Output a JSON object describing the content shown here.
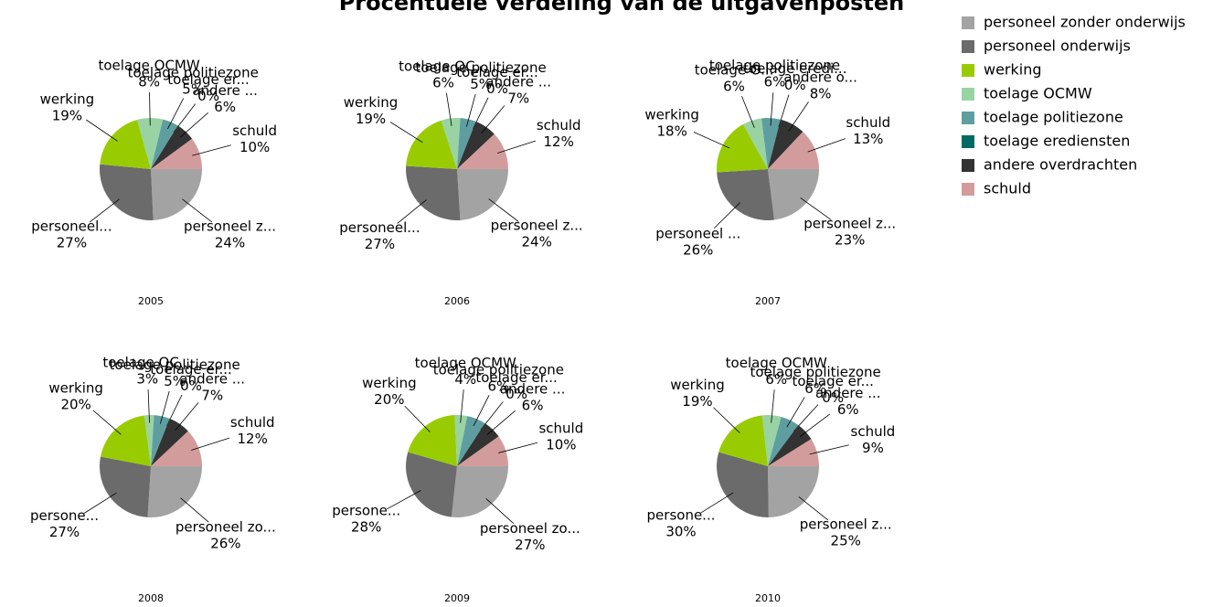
{
  "title": "Procentuele verdeling  van de uitgavenposten",
  "legend": {
    "names": [
      "personeel zonder onderwijs",
      "personeel onderwijs",
      "werking",
      "toelage OCMW",
      "toelage politiezone",
      "toelage erediensten",
      "andere overdrachten",
      "schuld"
    ],
    "colors": [
      "#a3a3a3",
      "#6b6b6b",
      "#99cc00",
      "#99d3a3",
      "#5f9ea0",
      "#006b63",
      "#333333",
      "#d39c9c"
    ]
  },
  "chart_data": [
    {
      "type": "pie",
      "title": "2005",
      "labels": [
        "personeel z...",
        "personeel...",
        "werking",
        "toelage OCMW",
        "toelage politiezone",
        "toelage er...",
        "andere ...",
        "schuld"
      ],
      "values": [
        24,
        27,
        19,
        8,
        5,
        0,
        6,
        10
      ],
      "value_labels": [
        "24%",
        "27%",
        "19%",
        "8%",
        "5%",
        "0%",
        "6%",
        "10%"
      ]
    },
    {
      "type": "pie",
      "title": "2006",
      "labels": [
        "personeel z...",
        "personeel...",
        "werking",
        "toelage OC...",
        "toelage politiezone",
        "toelage er...",
        "andere ...",
        "schuld"
      ],
      "values": [
        24,
        27,
        19,
        6,
        5,
        0,
        7,
        12
      ],
      "value_labels": [
        "24%",
        "27%",
        "19%",
        "6%",
        "5%",
        "0%",
        "7%",
        "12%"
      ]
    },
    {
      "type": "pie",
      "title": "2007",
      "labels": [
        "personeel z...",
        "personeel ...",
        "werking",
        "toelage O...",
        "toelage politiezone",
        "toelage eredi...",
        "andere o...",
        "schuld"
      ],
      "values": [
        23,
        26,
        18,
        6,
        6,
        0,
        8,
        13
      ],
      "value_labels": [
        "23%",
        "26%",
        "18%",
        "6%",
        "6%",
        "0%",
        "8%",
        "13%"
      ]
    },
    {
      "type": "pie",
      "title": "2008",
      "labels": [
        "personeel zo...",
        "persone...",
        "werking",
        "toelage OC...",
        "toelage politiezone",
        "toelage er...",
        "andere ...",
        "schuld"
      ],
      "values": [
        26,
        27,
        20,
        3,
        5,
        0,
        7,
        12
      ],
      "value_labels": [
        "26%",
        "27%",
        "20%",
        "3%",
        "5%",
        "0%",
        "7%",
        "12%"
      ]
    },
    {
      "type": "pie",
      "title": "2009",
      "labels": [
        "personeel zo...",
        "persone...",
        "werking",
        "toelage OCMW",
        "toelage politiezone",
        "toelage er...",
        "andere ...",
        "schuld"
      ],
      "values": [
        27,
        28,
        20,
        4,
        6,
        0,
        6,
        10
      ],
      "value_labels": [
        "27%",
        "28%",
        "20%",
        "4%",
        "6%",
        "0%",
        "6%",
        "10%"
      ]
    },
    {
      "type": "pie",
      "title": "2010",
      "labels": [
        "personeel z...",
        "persone...",
        "werking",
        "toelage OCMW",
        "toelage politiezone",
        "toelage er...",
        "andere ...",
        "schuld"
      ],
      "values": [
        25,
        30,
        19,
        6,
        6,
        0,
        6,
        9
      ],
      "value_labels": [
        "25%",
        "30%",
        "19%",
        "6%",
        "6%",
        "0%",
        "6%",
        "9%"
      ]
    }
  ]
}
